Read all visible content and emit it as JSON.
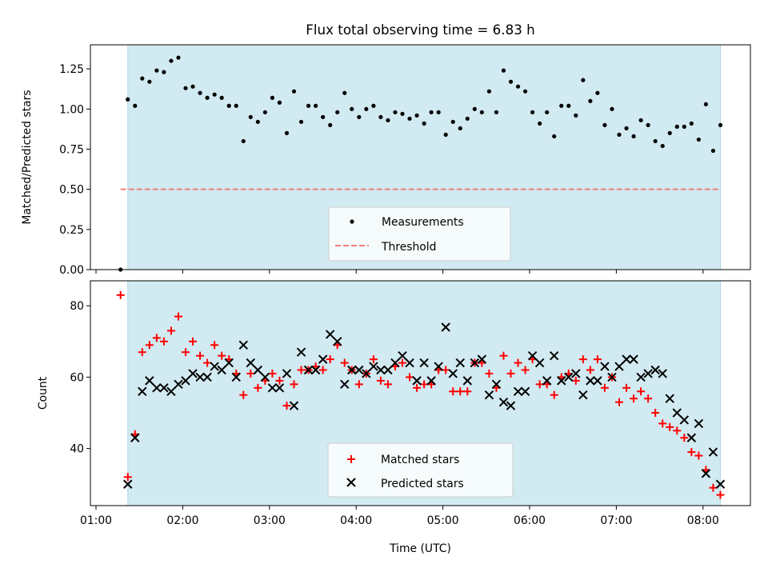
{
  "chart_data": [
    {
      "type": "scatter",
      "title": "Flux total observing time = 6.83 h",
      "ylabel": "Matched/Predicted stars",
      "xlabel": "",
      "ylim": [
        0,
        1.4
      ],
      "yticks": [
        "0.00",
        "0.25",
        "0.50",
        "0.75",
        "1.00",
        "1.25"
      ],
      "ytick_values": [
        0,
        0.25,
        0.5,
        0.75,
        1.0,
        1.25
      ],
      "shaded_span": [
        "01:22",
        "08:12"
      ],
      "threshold": {
        "name": "Threshold",
        "value": 0.5,
        "x_start": "01:17",
        "x_end": "08:12",
        "color": "#f08080"
      },
      "legend": {
        "position": "lower center",
        "entries": [
          "Measurements",
          "Threshold"
        ]
      },
      "series": [
        {
          "name": "Measurements",
          "color": "#000000",
          "points": [
            [
              "01:17",
              0.0
            ],
            [
              "01:22",
              1.06
            ],
            [
              "01:27",
              1.02
            ],
            [
              "01:32",
              1.19
            ],
            [
              "01:37",
              1.17
            ],
            [
              "01:42",
              1.24
            ],
            [
              "01:47",
              1.23
            ],
            [
              "01:52",
              1.3
            ],
            [
              "01:57",
              1.32
            ],
            [
              "02:02",
              1.13
            ],
            [
              "02:07",
              1.14
            ],
            [
              "02:12",
              1.1
            ],
            [
              "02:17",
              1.07
            ],
            [
              "02:22",
              1.09
            ],
            [
              "02:27",
              1.07
            ],
            [
              "02:32",
              1.02
            ],
            [
              "02:37",
              1.02
            ],
            [
              "02:42",
              0.8
            ],
            [
              "02:47",
              0.95
            ],
            [
              "02:52",
              0.92
            ],
            [
              "02:57",
              0.98
            ],
            [
              "03:02",
              1.07
            ],
            [
              "03:07",
              1.04
            ],
            [
              "03:12",
              0.85
            ],
            [
              "03:17",
              1.11
            ],
            [
              "03:22",
              0.92
            ],
            [
              "03:27",
              1.02
            ],
            [
              "03:32",
              1.02
            ],
            [
              "03:37",
              0.95
            ],
            [
              "03:42",
              0.9
            ],
            [
              "03:47",
              0.98
            ],
            [
              "03:52",
              1.1
            ],
            [
              "03:57",
              1.0
            ],
            [
              "04:02",
              0.95
            ],
            [
              "04:07",
              1.0
            ],
            [
              "04:12",
              1.02
            ],
            [
              "04:17",
              0.95
            ],
            [
              "04:22",
              0.93
            ],
            [
              "04:27",
              0.98
            ],
            [
              "04:32",
              0.97
            ],
            [
              "04:37",
              0.94
            ],
            [
              "04:42",
              0.96
            ],
            [
              "04:47",
              0.91
            ],
            [
              "04:52",
              0.98
            ],
            [
              "04:57",
              0.98
            ],
            [
              "05:02",
              0.84
            ],
            [
              "05:07",
              0.92
            ],
            [
              "05:12",
              0.88
            ],
            [
              "05:17",
              0.94
            ],
            [
              "05:22",
              1.0
            ],
            [
              "05:27",
              0.98
            ],
            [
              "05:32",
              1.11
            ],
            [
              "05:37",
              0.98
            ],
            [
              "05:42",
              1.24
            ],
            [
              "05:47",
              1.17
            ],
            [
              "05:52",
              1.14
            ],
            [
              "05:57",
              1.11
            ],
            [
              "06:02",
              0.98
            ],
            [
              "06:07",
              0.91
            ],
            [
              "06:12",
              0.98
            ],
            [
              "06:17",
              0.83
            ],
            [
              "06:22",
              1.02
            ],
            [
              "06:27",
              1.02
            ],
            [
              "06:32",
              0.96
            ],
            [
              "06:37",
              1.18
            ],
            [
              "06:42",
              1.05
            ],
            [
              "06:47",
              1.1
            ],
            [
              "06:52",
              0.9
            ],
            [
              "06:57",
              1.0
            ],
            [
              "07:02",
              0.84
            ],
            [
              "07:07",
              0.88
            ],
            [
              "07:12",
              0.83
            ],
            [
              "07:17",
              0.93
            ],
            [
              "07:22",
              0.9
            ],
            [
              "07:27",
              0.8
            ],
            [
              "07:32",
              0.77
            ],
            [
              "07:37",
              0.85
            ],
            [
              "07:42",
              0.89
            ],
            [
              "07:47",
              0.89
            ],
            [
              "07:52",
              0.91
            ],
            [
              "07:57",
              0.81
            ],
            [
              "08:02",
              1.03
            ],
            [
              "08:07",
              0.74
            ],
            [
              "08:12",
              0.9
            ]
          ]
        }
      ]
    },
    {
      "type": "scatter",
      "title": "",
      "ylabel": "Count",
      "xlabel": "Time (UTC)",
      "ylim": [
        24,
        87
      ],
      "yticks": [
        "40",
        "60",
        "80"
      ],
      "ytick_values": [
        40,
        60,
        80
      ],
      "xticks": [
        "01:00",
        "02:00",
        "03:00",
        "04:00",
        "05:00",
        "06:00",
        "07:00",
        "08:00"
      ],
      "shaded_span": [
        "01:22",
        "08:12"
      ],
      "legend": {
        "position": "lower center",
        "entries": [
          "Matched stars",
          "Predicted stars"
        ]
      },
      "series": [
        {
          "name": "Matched stars",
          "marker": "plus",
          "color": "#ff0000",
          "points": [
            [
              "01:17",
              83
            ],
            [
              "01:22",
              32
            ],
            [
              "01:27",
              44
            ],
            [
              "01:32",
              67
            ],
            [
              "01:37",
              69
            ],
            [
              "01:42",
              71
            ],
            [
              "01:47",
              70
            ],
            [
              "01:52",
              73
            ],
            [
              "01:57",
              77
            ],
            [
              "02:02",
              67
            ],
            [
              "02:07",
              70
            ],
            [
              "02:12",
              66
            ],
            [
              "02:17",
              64
            ],
            [
              "02:22",
              69
            ],
            [
              "02:27",
              66
            ],
            [
              "02:32",
              65
            ],
            [
              "02:37",
              61
            ],
            [
              "02:42",
              55
            ],
            [
              "02:47",
              61
            ],
            [
              "02:52",
              57
            ],
            [
              "02:57",
              59
            ],
            [
              "03:02",
              61
            ],
            [
              "03:07",
              59
            ],
            [
              "03:12",
              52
            ],
            [
              "03:17",
              58
            ],
            [
              "03:22",
              62
            ],
            [
              "03:27",
              62
            ],
            [
              "03:32",
              63
            ],
            [
              "03:37",
              62
            ],
            [
              "03:42",
              65
            ],
            [
              "03:47",
              69
            ],
            [
              "03:52",
              64
            ],
            [
              "03:57",
              62
            ],
            [
              "04:02",
              58
            ],
            [
              "04:07",
              61
            ],
            [
              "04:12",
              65
            ],
            [
              "04:17",
              59
            ],
            [
              "04:22",
              58
            ],
            [
              "04:27",
              63
            ],
            [
              "04:32",
              64
            ],
            [
              "04:37",
              60
            ],
            [
              "04:42",
              57
            ],
            [
              "04:47",
              58
            ],
            [
              "04:52",
              58
            ],
            [
              "04:57",
              62
            ],
            [
              "05:02",
              62
            ],
            [
              "05:07",
              56
            ],
            [
              "05:12",
              56
            ],
            [
              "05:17",
              56
            ],
            [
              "05:22",
              64
            ],
            [
              "05:27",
              64
            ],
            [
              "05:32",
              61
            ],
            [
              "05:37",
              57
            ],
            [
              "05:42",
              66
            ],
            [
              "05:47",
              61
            ],
            [
              "05:52",
              64
            ],
            [
              "05:57",
              62
            ],
            [
              "06:02",
              65
            ],
            [
              "06:07",
              58
            ],
            [
              "06:12",
              58
            ],
            [
              "06:17",
              55
            ],
            [
              "06:22",
              60
            ],
            [
              "06:27",
              61
            ],
            [
              "06:32",
              59
            ],
            [
              "06:37",
              65
            ],
            [
              "06:42",
              62
            ],
            [
              "06:47",
              65
            ],
            [
              "06:52",
              57
            ],
            [
              "06:57",
              60
            ],
            [
              "07:02",
              53
            ],
            [
              "07:07",
              57
            ],
            [
              "07:12",
              54
            ],
            [
              "07:17",
              56
            ],
            [
              "07:22",
              54
            ],
            [
              "07:27",
              50
            ],
            [
              "07:32",
              47
            ],
            [
              "07:37",
              46
            ],
            [
              "07:42",
              45
            ],
            [
              "07:47",
              43
            ],
            [
              "07:52",
              39
            ],
            [
              "07:57",
              38
            ],
            [
              "08:02",
              34
            ],
            [
              "08:07",
              29
            ],
            [
              "08:12",
              27
            ]
          ]
        },
        {
          "name": "Predicted stars",
          "marker": "x",
          "color": "#000000",
          "points": [
            [
              "01:22",
              30
            ],
            [
              "01:27",
              43
            ],
            [
              "01:32",
              56
            ],
            [
              "01:37",
              59
            ],
            [
              "01:42",
              57
            ],
            [
              "01:47",
              57
            ],
            [
              "01:52",
              56
            ],
            [
              "01:57",
              58
            ],
            [
              "02:02",
              59
            ],
            [
              "02:07",
              61
            ],
            [
              "02:12",
              60
            ],
            [
              "02:17",
              60
            ],
            [
              "02:22",
              63
            ],
            [
              "02:27",
              62
            ],
            [
              "02:32",
              64
            ],
            [
              "02:37",
              60
            ],
            [
              "02:42",
              69
            ],
            [
              "02:47",
              64
            ],
            [
              "02:52",
              62
            ],
            [
              "02:57",
              60
            ],
            [
              "03:02",
              57
            ],
            [
              "03:07",
              57
            ],
            [
              "03:12",
              61
            ],
            [
              "03:17",
              52
            ],
            [
              "03:22",
              67
            ],
            [
              "03:27",
              62
            ],
            [
              "03:32",
              62
            ],
            [
              "03:37",
              65
            ],
            [
              "03:42",
              72
            ],
            [
              "03:47",
              70
            ],
            [
              "03:52",
              58
            ],
            [
              "03:57",
              62
            ],
            [
              "04:02",
              62
            ],
            [
              "04:07",
              61
            ],
            [
              "04:12",
              63
            ],
            [
              "04:17",
              62
            ],
            [
              "04:22",
              62
            ],
            [
              "04:27",
              64
            ],
            [
              "04:32",
              66
            ],
            [
              "04:37",
              64
            ],
            [
              "04:42",
              59
            ],
            [
              "04:47",
              64
            ],
            [
              "04:52",
              59
            ],
            [
              "04:57",
              63
            ],
            [
              "05:02",
              74
            ],
            [
              "05:07",
              61
            ],
            [
              "05:12",
              64
            ],
            [
              "05:17",
              59
            ],
            [
              "05:22",
              64
            ],
            [
              "05:27",
              65
            ],
            [
              "05:32",
              55
            ],
            [
              "05:37",
              58
            ],
            [
              "05:42",
              53
            ],
            [
              "05:47",
              52
            ],
            [
              "05:52",
              56
            ],
            [
              "05:57",
              56
            ],
            [
              "06:02",
              66
            ],
            [
              "06:07",
              64
            ],
            [
              "06:12",
              59
            ],
            [
              "06:17",
              66
            ],
            [
              "06:22",
              59
            ],
            [
              "06:27",
              60
            ],
            [
              "06:32",
              61
            ],
            [
              "06:37",
              55
            ],
            [
              "06:42",
              59
            ],
            [
              "06:47",
              59
            ],
            [
              "06:52",
              63
            ],
            [
              "06:57",
              60
            ],
            [
              "07:02",
              63
            ],
            [
              "07:07",
              65
            ],
            [
              "07:12",
              65
            ],
            [
              "07:17",
              60
            ],
            [
              "07:22",
              61
            ],
            [
              "07:27",
              62
            ],
            [
              "07:32",
              61
            ],
            [
              "07:37",
              54
            ],
            [
              "07:42",
              50
            ],
            [
              "07:47",
              48
            ],
            [
              "07:52",
              43
            ],
            [
              "07:57",
              47
            ],
            [
              "08:02",
              33
            ],
            [
              "08:07",
              39
            ],
            [
              "08:12",
              30
            ]
          ]
        }
      ]
    }
  ],
  "colors": {
    "shaded_span": "#add8e6",
    "threshold": "#f08080",
    "matched": "#ff0000",
    "predicted": "#000000",
    "measurements": "#000000"
  }
}
